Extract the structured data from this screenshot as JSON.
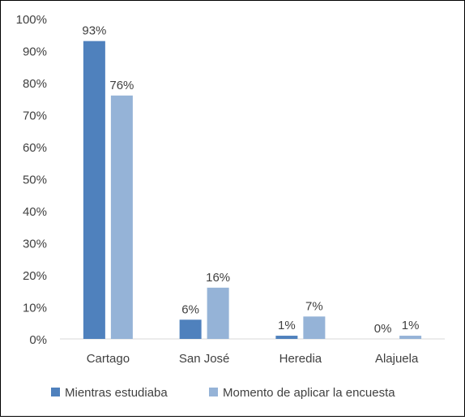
{
  "chart_data": {
    "type": "bar",
    "categories": [
      "Cartago",
      "San José",
      "Heredia",
      "Alajuela"
    ],
    "series": [
      {
        "name": "Mientras estudiaba",
        "values": [
          93,
          6,
          1,
          0
        ],
        "labels": [
          "93%",
          "6%",
          "1%",
          "0%"
        ],
        "color": "#4F81BD"
      },
      {
        "name": "Momento de aplicar la encuesta",
        "values": [
          76,
          16,
          7,
          1
        ],
        "labels": [
          "76%",
          "16%",
          "7%",
          "1%"
        ],
        "color": "#95B3D7"
      }
    ],
    "yticks": [
      "0%",
      "10%",
      "20%",
      "30%",
      "40%",
      "50%",
      "60%",
      "70%",
      "80%",
      "90%",
      "100%"
    ],
    "ylim": [
      0,
      100
    ],
    "grid": false,
    "legend": "bottom"
  }
}
